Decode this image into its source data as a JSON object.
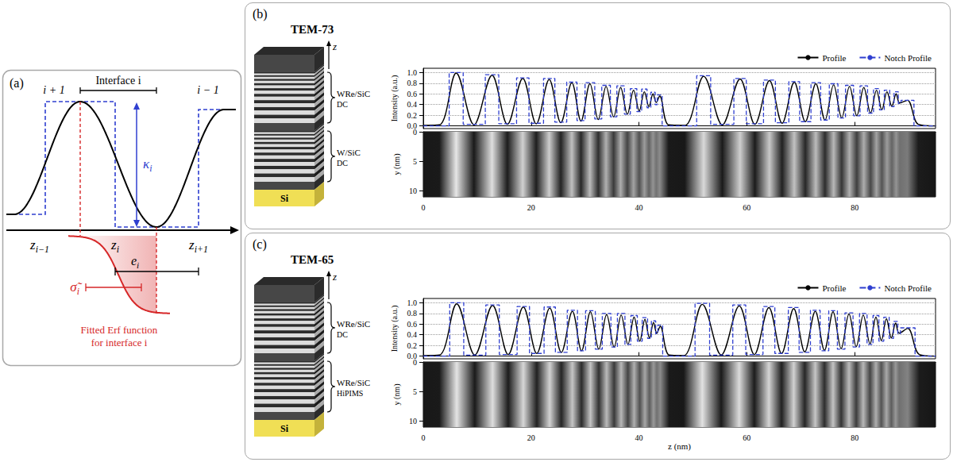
{
  "panel_a": {
    "label": "(a)",
    "region_labels": [
      "i + 1",
      "i − 1"
    ],
    "interface_label": "Interface i",
    "kappa": {
      "text": "κ",
      "sub": "i"
    },
    "z_labels": [
      {
        "text": "z",
        "sub": "i−1"
      },
      {
        "text": "z",
        "sub": "i"
      },
      {
        "text": "z",
        "sub": "i+1"
      }
    ],
    "e": {
      "text": "e",
      "sub": "i"
    },
    "sigma": {
      "text": "σ̃",
      "sub": "i"
    },
    "erf_label": [
      "Fitted Erf function",
      "for interface i"
    ]
  },
  "chart_data": [
    {
      "panel": "(b)",
      "type": "line",
      "title": "TEM-73",
      "stack": {
        "axis": "z",
        "groups": [
          {
            "material": "WRe/SiC",
            "method": "DC"
          },
          {
            "material": "W/SiC",
            "method": "DC"
          }
        ],
        "substrate": "Si"
      },
      "ylabel": "Intensity (a.u.)",
      "xlim": [
        0,
        95
      ],
      "xticks": [
        0,
        20,
        40,
        60,
        80
      ],
      "ylim": [
        -0.05,
        1.08
      ],
      "yticks": [
        {
          "value": 0,
          "label": "0.0"
        },
        {
          "value": 0.2,
          "label": "0.2"
        },
        {
          "value": 0.4,
          "label": "0.4"
        },
        {
          "value": 0.6,
          "label": "0.6"
        },
        {
          "value": 0.8,
          "label": "0.8"
        },
        {
          "value": 1,
          "label": "1.0"
        }
      ],
      "grid": true,
      "legend": "upper right",
      "series": [
        {
          "name": "Profile",
          "color": "#000000",
          "line_style": "solid",
          "x": [
            0,
            3.0,
            6.1,
            9.4,
            12.75,
            15.6,
            18.45,
            20.95,
            23.35,
            25.5,
            27.55,
            29.25,
            30.9,
            32.45,
            33.9,
            35.3,
            36.6,
            37.85,
            39.0,
            40.05,
            41.0,
            41.85,
            42.6,
            43.2,
            43.85,
            45.5,
            48.5,
            52.0,
            55.45,
            58.75,
            61.5,
            64.2,
            66.55,
            68.8,
            70.85,
            72.8,
            74.5,
            76.1,
            77.6,
            79.05,
            80.4,
            81.7,
            82.95,
            84.05,
            85.05,
            86.0,
            86.9,
            87.7,
            88.35,
            89.8,
            91.8,
            95
          ],
          "values": [
            0.01,
            0.02,
            0.99,
            0.02,
            0.95,
            0.03,
            0.89,
            0.04,
            0.87,
            0.06,
            0.81,
            0.09,
            0.79,
            0.12,
            0.74,
            0.17,
            0.72,
            0.22,
            0.67,
            0.28,
            0.64,
            0.36,
            0.6,
            0.44,
            0.56,
            0.02,
            0.01,
            0.93,
            0.02,
            0.88,
            0.03,
            0.85,
            0.05,
            0.82,
            0.08,
            0.79,
            0.11,
            0.77,
            0.15,
            0.74,
            0.19,
            0.72,
            0.24,
            0.67,
            0.3,
            0.64,
            0.37,
            0.6,
            0.43,
            0.48,
            0.03,
            0.0
          ]
        },
        {
          "name": "Notch Profile",
          "color": "#2f3fd0",
          "line_style": "dashed",
          "type": "step",
          "x": [
            0,
            4.8,
            7.4,
            11.5,
            14.0,
            17.3,
            19.6,
            22.3,
            24.4,
            26.6,
            28.5,
            30.0,
            31.8,
            33.1,
            34.7,
            35.9,
            37.3,
            38.4,
            39.6,
            40.5,
            41.5,
            42.2,
            43.0,
            43.4,
            44.3,
            50.7,
            53.3,
            57.6,
            59.9,
            63.1,
            65.3,
            67.8,
            69.8,
            71.9,
            73.7,
            75.3,
            76.9,
            78.3,
            79.8,
            81.0,
            82.4,
            83.5,
            84.6,
            85.5,
            86.5,
            87.3,
            88.1,
            88.6,
            91.0,
            95
          ],
          "values": [
            0.0,
            1.0,
            0.03,
            0.96,
            0.04,
            0.9,
            0.05,
            0.89,
            0.07,
            0.82,
            0.1,
            0.81,
            0.13,
            0.76,
            0.17,
            0.75,
            0.22,
            0.7,
            0.27,
            0.69,
            0.34,
            0.63,
            0.4,
            0.58,
            0.0,
            0.94,
            0.03,
            0.89,
            0.04,
            0.86,
            0.06,
            0.83,
            0.08,
            0.81,
            0.11,
            0.79,
            0.15,
            0.76,
            0.19,
            0.75,
            0.24,
            0.7,
            0.3,
            0.67,
            0.36,
            0.64,
            0.42,
            0.48,
            0.0,
            0.0
          ]
        }
      ],
      "image": {
        "ylabel": "y (nm)",
        "ylim": [
          0,
          11
        ],
        "yticks": [
          0,
          5,
          10
        ]
      }
    },
    {
      "panel": "(c)",
      "type": "line",
      "title": "TEM-65",
      "stack": {
        "axis": "z",
        "groups": [
          {
            "material": "WRe/SiC",
            "method": "DC"
          },
          {
            "material": "WRe/SiC",
            "method": "HiPIMS"
          }
        ],
        "substrate": "Si"
      },
      "xlabel": "z (nm)",
      "ylabel": "Intensity (a.u.)",
      "xlim": [
        0,
        95
      ],
      "xticks": [
        0,
        20,
        40,
        60,
        80
      ],
      "ylim": [
        -0.05,
        1.08
      ],
      "yticks": [
        {
          "value": 0,
          "label": "0.0"
        },
        {
          "value": 0.2,
          "label": "0.2"
        },
        {
          "value": 0.4,
          "label": "0.4"
        },
        {
          "value": 0.6,
          "label": "0.6"
        },
        {
          "value": 0.8,
          "label": "0.8"
        },
        {
          "value": 1,
          "label": "1.0"
        }
      ],
      "grid": true,
      "legend": "upper right",
      "series": [
        {
          "name": "Profile",
          "color": "#000000",
          "line_style": "solid",
          "x": [
            0,
            3.0,
            6.2,
            9.55,
            12.85,
            15.75,
            18.55,
            21.05,
            23.45,
            25.6,
            27.65,
            29.35,
            31.0,
            32.55,
            34.0,
            35.4,
            36.7,
            37.95,
            39.1,
            40.15,
            41.1,
            41.95,
            42.7,
            43.3,
            43.95,
            45.6,
            48.3,
            51.75,
            55.25,
            58.6,
            61.4,
            64.1,
            66.45,
            68.7,
            70.75,
            72.7,
            74.4,
            76.0,
            77.5,
            78.95,
            80.3,
            81.6,
            82.85,
            83.95,
            84.95,
            85.9,
            86.8,
            87.6,
            88.25,
            89.85,
            92.0,
            95
          ],
          "values": [
            0.01,
            0.02,
            0.98,
            0.02,
            0.95,
            0.03,
            0.92,
            0.05,
            0.9,
            0.07,
            0.84,
            0.1,
            0.83,
            0.13,
            0.78,
            0.17,
            0.77,
            0.22,
            0.73,
            0.28,
            0.69,
            0.34,
            0.63,
            0.43,
            0.56,
            0.02,
            0.01,
            0.97,
            0.02,
            0.94,
            0.03,
            0.91,
            0.05,
            0.89,
            0.08,
            0.84,
            0.11,
            0.83,
            0.14,
            0.79,
            0.18,
            0.77,
            0.23,
            0.73,
            0.29,
            0.7,
            0.34,
            0.62,
            0.43,
            0.52,
            0.03,
            0.0
          ]
        },
        {
          "name": "Notch Profile",
          "color": "#2f3fd0",
          "line_style": "dashed",
          "type": "step",
          "x": [
            0,
            4.9,
            7.5,
            11.6,
            14.1,
            17.4,
            19.7,
            22.4,
            24.5,
            26.7,
            28.6,
            30.1,
            31.9,
            33.2,
            34.8,
            36.0,
            37.4,
            38.5,
            39.7,
            40.6,
            41.6,
            42.3,
            43.1,
            43.5,
            44.4,
            50.4,
            53.1,
            57.4,
            59.8,
            63.0,
            65.2,
            67.7,
            69.7,
            71.8,
            73.6,
            75.2,
            76.8,
            78.2,
            79.7,
            80.9,
            82.3,
            83.4,
            84.5,
            85.4,
            86.4,
            87.2,
            88.0,
            88.5,
            91.2,
            95
          ],
          "values": [
            0.0,
            1.0,
            0.02,
            0.96,
            0.03,
            0.93,
            0.05,
            0.92,
            0.07,
            0.86,
            0.1,
            0.85,
            0.13,
            0.8,
            0.17,
            0.8,
            0.22,
            0.76,
            0.28,
            0.72,
            0.33,
            0.66,
            0.42,
            0.58,
            0.0,
            0.99,
            0.02,
            0.96,
            0.03,
            0.93,
            0.05,
            0.91,
            0.07,
            0.86,
            0.1,
            0.85,
            0.13,
            0.81,
            0.17,
            0.8,
            0.22,
            0.76,
            0.28,
            0.73,
            0.33,
            0.65,
            0.42,
            0.53,
            0.0,
            0.0
          ]
        }
      ],
      "image": {
        "ylabel": "y (nm)",
        "ylim": [
          0,
          11
        ],
        "yticks": [
          0,
          5,
          10
        ]
      }
    }
  ]
}
